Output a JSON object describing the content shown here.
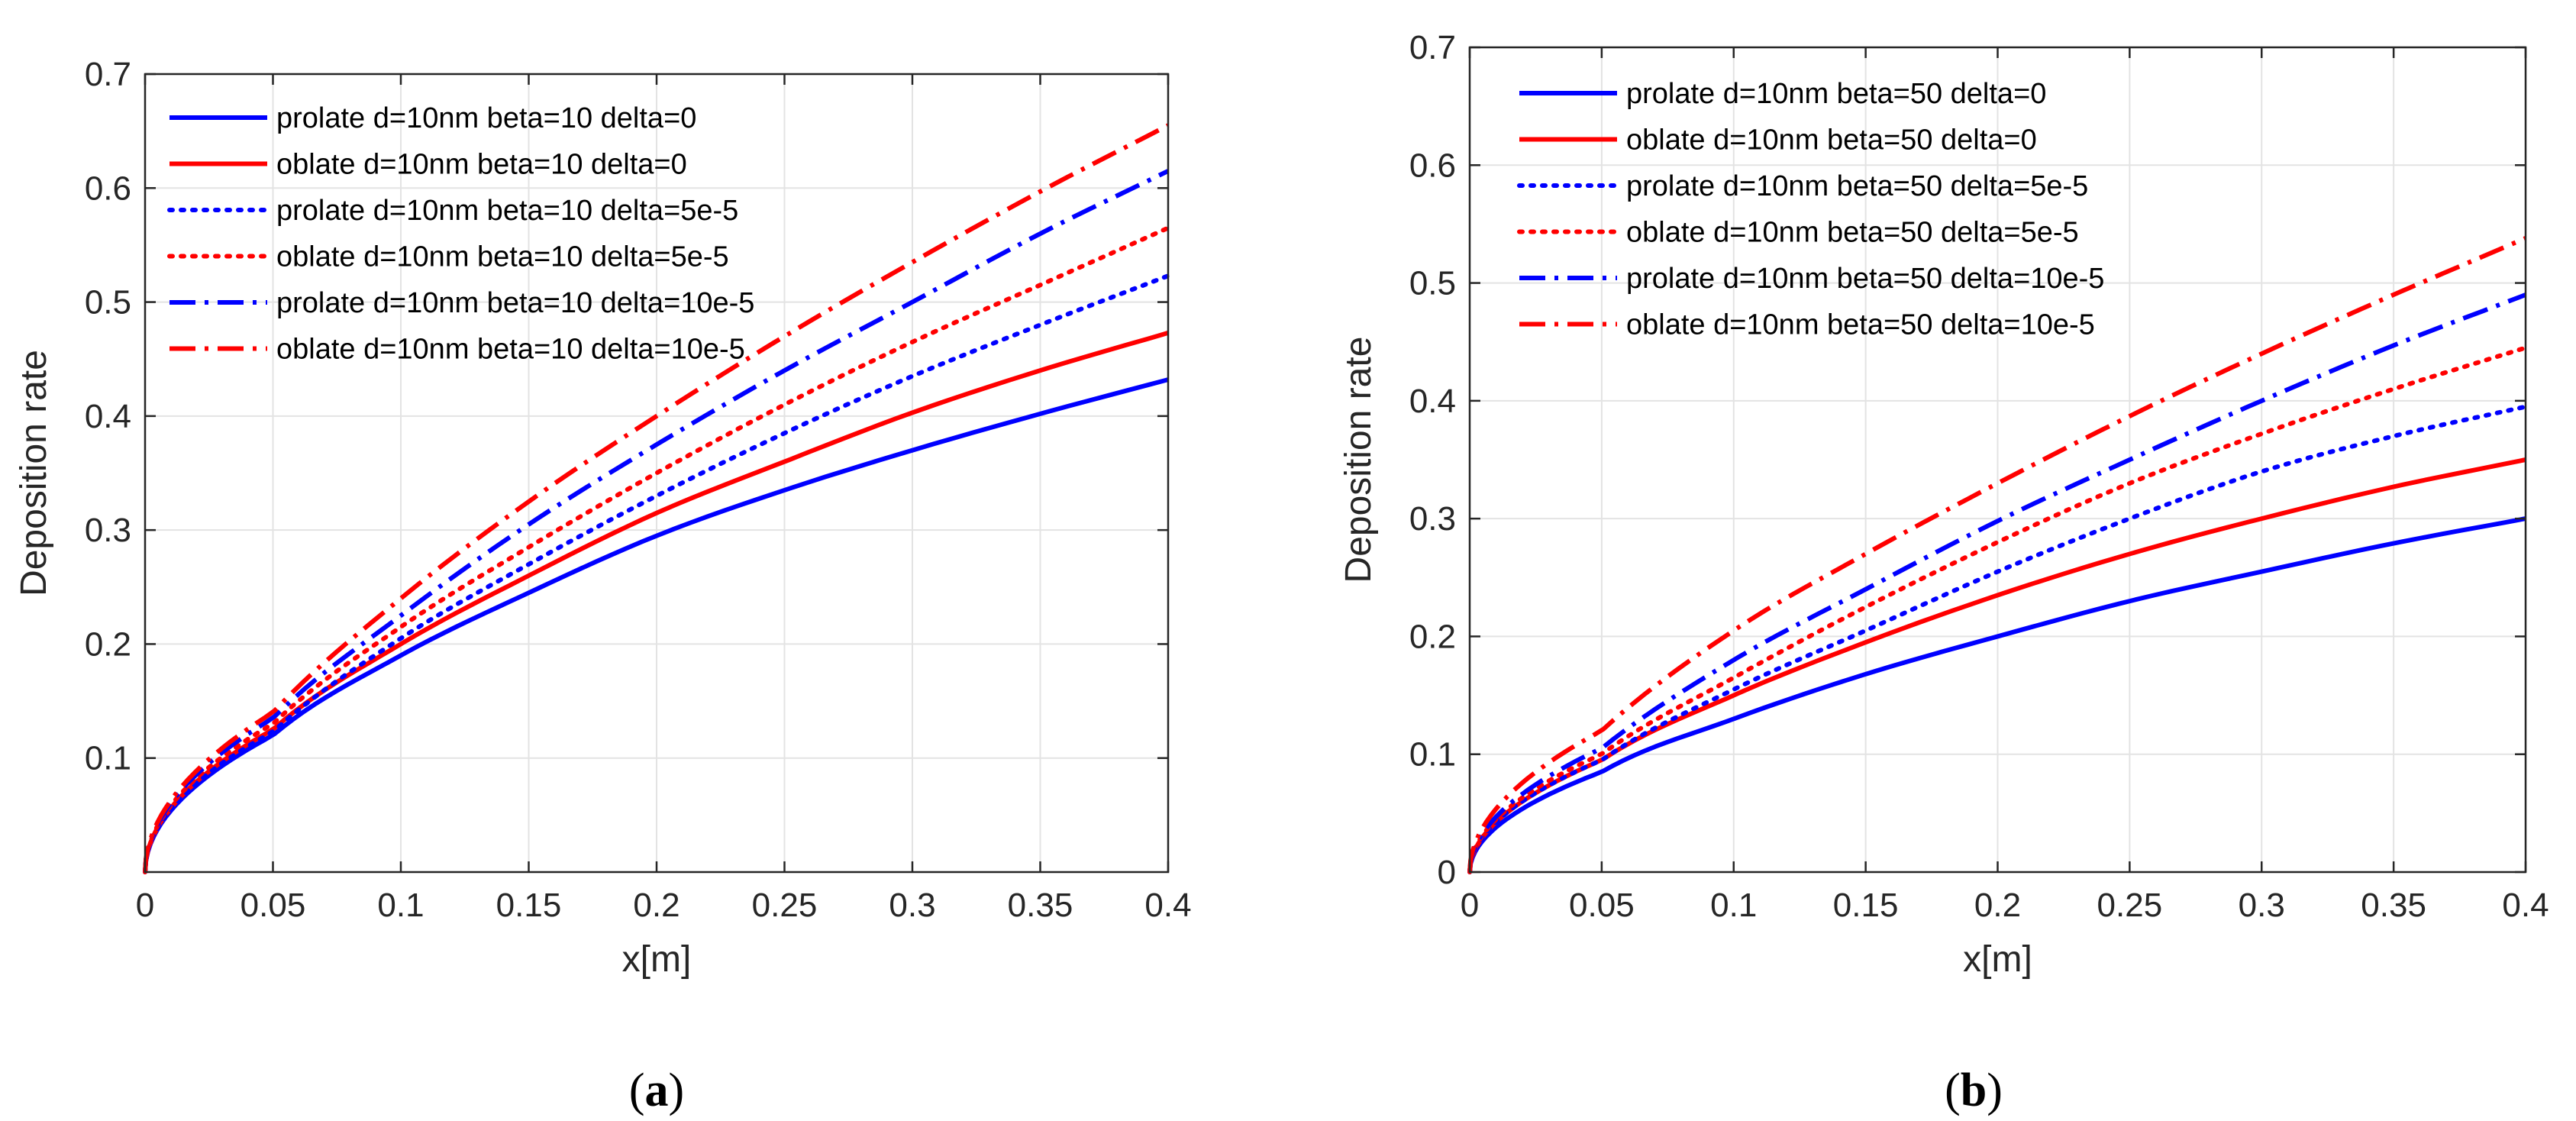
{
  "chart_data": [
    {
      "type": "line",
      "panel": "a",
      "caption": {
        "open": "(",
        "letter": "a",
        "close": ")"
      },
      "xlabel": "x[m]",
      "ylabel": "Deposition rate",
      "xlim": [
        0,
        0.4
      ],
      "ylim": [
        0,
        0.7
      ],
      "xticks": [
        0,
        0.05,
        0.1,
        0.15,
        0.2,
        0.25,
        0.3,
        0.35,
        0.4
      ],
      "xtick_labels": [
        "0",
        "0.05",
        "0.1",
        "0.15",
        "0.2",
        "0.25",
        "0.3",
        "0.35",
        "0.4"
      ],
      "yticks": [
        0.1,
        0.2,
        0.3,
        0.4,
        0.5,
        0.6,
        0.7
      ],
      "ytick_labels": [
        "0.1",
        "0.2",
        "0.3",
        "0.4",
        "0.5",
        "0.6",
        "0.7"
      ],
      "grid": true,
      "legend_position": "top-left",
      "x": [
        0,
        0.05,
        0.1,
        0.15,
        0.2,
        0.25,
        0.3,
        0.35,
        0.4
      ],
      "series": [
        {
          "name": "prolate d=10nm beta=10 delta=0",
          "color": "#0000ff",
          "style": "solid",
          "values": [
            0,
            0.12,
            0.19,
            0.245,
            0.295,
            0.335,
            0.37,
            0.402,
            0.432
          ]
        },
        {
          "name": "oblate d=10nm beta=10 delta=0",
          "color": "#ff0000",
          "style": "solid",
          "values": [
            0,
            0.125,
            0.2,
            0.26,
            0.315,
            0.36,
            0.403,
            0.44,
            0.473
          ]
        },
        {
          "name": "prolate d=10nm beta=10 delta=5e-5",
          "color": "#0000ff",
          "style": "dotted",
          "values": [
            0,
            0.123,
            0.205,
            0.27,
            0.33,
            0.385,
            0.435,
            0.48,
            0.523
          ]
        },
        {
          "name": "oblate d=10nm beta=10 delta=5e-5",
          "color": "#ff0000",
          "style": "dotted",
          "values": [
            0,
            0.13,
            0.215,
            0.285,
            0.35,
            0.41,
            0.465,
            0.515,
            0.565
          ]
        },
        {
          "name": "prolate d=10nm beta=10 delta=10e-5",
          "color": "#0000ff",
          "style": "dashdot",
          "values": [
            0,
            0.135,
            0.225,
            0.305,
            0.375,
            0.44,
            0.5,
            0.56,
            0.615
          ]
        },
        {
          "name": "oblate d=10nm beta=10 delta=10e-5",
          "color": "#ff0000",
          "style": "dashdot",
          "values": [
            0,
            0.14,
            0.24,
            0.325,
            0.4,
            0.47,
            0.535,
            0.597,
            0.655
          ]
        }
      ]
    },
    {
      "type": "line",
      "panel": "b",
      "caption": {
        "open": "(",
        "letter": "b",
        "close": ")"
      },
      "xlabel": "x[m]",
      "ylabel": "Deposition rate",
      "xlim": [
        0,
        0.4
      ],
      "ylim": [
        0,
        0.7
      ],
      "xticks": [
        0,
        0.05,
        0.1,
        0.15,
        0.2,
        0.25,
        0.3,
        0.35,
        0.4
      ],
      "xtick_labels": [
        "0",
        "0.05",
        "0.1",
        "0.15",
        "0.2",
        "0.25",
        "0.3",
        "0.35",
        "0.4"
      ],
      "yticks": [
        0,
        0.1,
        0.2,
        0.3,
        0.4,
        0.5,
        0.6,
        0.7
      ],
      "ytick_labels": [
        "0",
        "0.1",
        "0.2",
        "0.3",
        "0.4",
        "0.5",
        "0.6",
        "0.7"
      ],
      "grid": true,
      "legend_position": "top-left",
      "x": [
        0,
        0.05,
        0.1,
        0.15,
        0.2,
        0.25,
        0.3,
        0.35,
        0.4
      ],
      "series": [
        {
          "name": "prolate d=10nm beta=50 delta=0",
          "color": "#0000ff",
          "style": "solid",
          "values": [
            0,
            0.085,
            0.13,
            0.168,
            0.2,
            0.23,
            0.255,
            0.279,
            0.3
          ]
        },
        {
          "name": "oblate d=10nm beta=50 delta=0",
          "color": "#ff0000",
          "style": "solid",
          "values": [
            0,
            0.095,
            0.15,
            0.195,
            0.235,
            0.27,
            0.3,
            0.327,
            0.35
          ]
        },
        {
          "name": "prolate d=10nm beta=50 delta=5e-5",
          "color": "#0000ff",
          "style": "dotted",
          "values": [
            0,
            0.095,
            0.155,
            0.205,
            0.255,
            0.3,
            0.34,
            0.37,
            0.395
          ]
        },
        {
          "name": "oblate d=10nm beta=50 delta=5e-5",
          "color": "#ff0000",
          "style": "dotted",
          "values": [
            0,
            0.1,
            0.165,
            0.225,
            0.28,
            0.33,
            0.372,
            0.41,
            0.445
          ]
        },
        {
          "name": "prolate d=10nm beta=50 delta=10e-5",
          "color": "#0000ff",
          "style": "dashdot",
          "values": [
            0,
            0.105,
            0.18,
            0.24,
            0.298,
            0.35,
            0.4,
            0.447,
            0.49
          ]
        },
        {
          "name": "oblate d=10nm beta=50 delta=10e-5",
          "color": "#ff0000",
          "style": "dashdot",
          "values": [
            0,
            0.12,
            0.205,
            0.27,
            0.33,
            0.387,
            0.44,
            0.49,
            0.538
          ]
        }
      ]
    }
  ]
}
